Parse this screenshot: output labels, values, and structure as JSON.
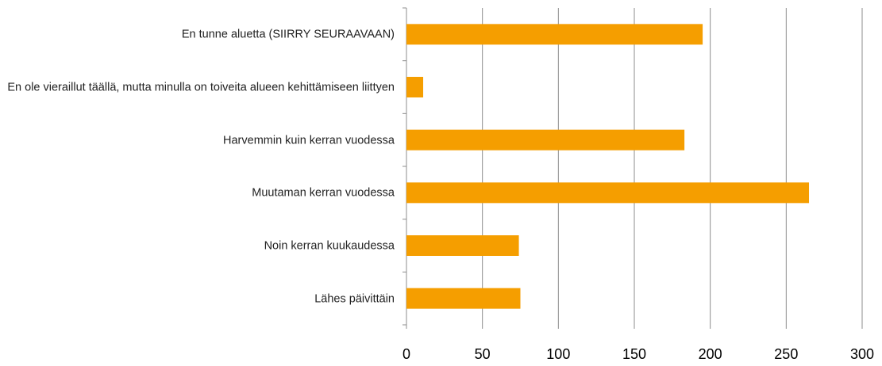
{
  "chart_data": {
    "type": "bar",
    "orientation": "horizontal",
    "categories": [
      "En tunne aluetta (SIIRRY SEURAAVAAN)",
      "En ole vieraillut täällä, mutta minulla on toiveita alueen kehittämiseen liittyen",
      "Harvemmin kuin kerran vuodessa",
      "Muutaman kerran vuodessa",
      "Noin kerran kuukaudessa",
      "Lähes päivittäin"
    ],
    "values": [
      195,
      11,
      183,
      265,
      74,
      75
    ],
    "color": "#f59e00",
    "xlim": [
      0,
      300
    ],
    "xticks": [
      0,
      50,
      100,
      150,
      200,
      250,
      300
    ],
    "grid": true
  }
}
